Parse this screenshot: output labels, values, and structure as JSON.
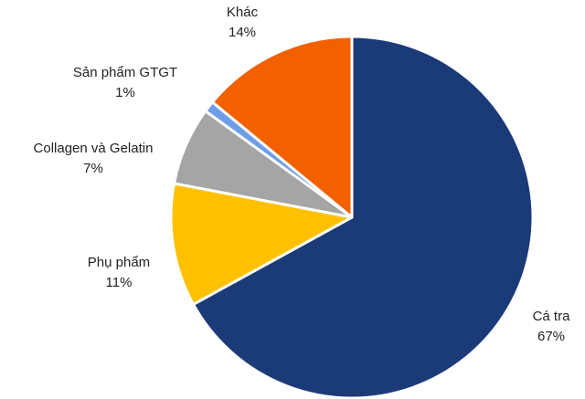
{
  "chart_data": {
    "type": "pie",
    "categories": [
      "Cá tra",
      "Phụ phẩm",
      "Collagen và Gelatin",
      "Sản phẩm GTGT",
      "Khác"
    ],
    "values": [
      67,
      11,
      7,
      1,
      14
    ],
    "value_labels": [
      "67%",
      "11%",
      "7%",
      "1%",
      "14%"
    ],
    "colors": [
      "#1b3a78",
      "#ffc000",
      "#a5a5a5",
      "#6f9ee8",
      "#f26000"
    ]
  }
}
